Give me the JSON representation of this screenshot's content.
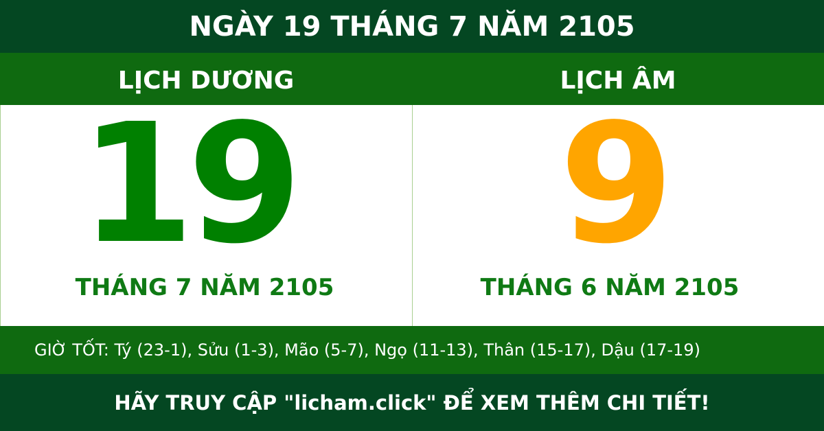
{
  "title": "NGÀY 19 THÁNG 7 NĂM 2105",
  "solar": {
    "label": "LỊCH DƯƠNG",
    "day": "19",
    "month_year": "THÁNG 7 NĂM 2105",
    "color": "#008000"
  },
  "lunar": {
    "label": "LỊCH ÂM",
    "day": "9",
    "month_year": "THÁNG 6 NĂM 2105",
    "color": "#FFA500"
  },
  "good_hours": "GIỜ TỐT: Tý (23-1), Sửu (1-3), Mão (5-7), Ngọ (11-13), Thân (15-17), Dậu (17-19)",
  "footer": "HÃY TRUY CẬP \"licham.click\" ĐỂ XEM THÊM CHI TIẾT!"
}
